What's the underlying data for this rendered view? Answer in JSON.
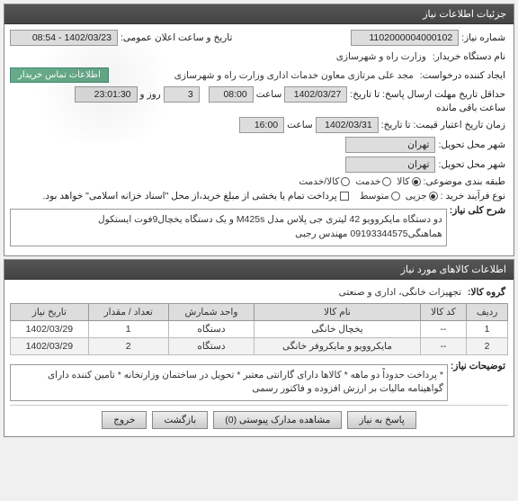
{
  "panel1": {
    "title": "جزئیات اطلاعات نیاز",
    "need_no_label": "شماره نیاز:",
    "need_no": "1102000004000102",
    "announce_label": "تاریخ و ساعت اعلان عمومی:",
    "announce_val": "1402/03/23 - 08:54",
    "buyer_label": "نام دستگاه خریدار:",
    "buyer_val": "وزارت راه و شهرسازی",
    "requester_label": "ایجاد کننده درخواست:",
    "requester_val": "مجد علی  مرتازی معاون خدمات اداری وزارت راه و شهرسازی",
    "contact_btn": "اطلاعات تماس خریدار",
    "deadline_label": "حداقل تاریخ\\nمهلت ارسال پاسخ: تا\\nتاریخ:",
    "deadline_date": "1402/03/27",
    "time_label": "ساعت",
    "deadline_time": "08:00",
    "days_label": "روز و",
    "days_left": "3",
    "hhmmss": "23:01:30",
    "remaining": "ساعت باقی مانده",
    "expire_label": "زمان تاریخ اعتبار\\nقیمت: تا تاریخ:",
    "expire_date": "1402/03/31",
    "expire_time": "16:00",
    "need_city_label": "شهر محل تحویل:",
    "need_city": "تهران",
    "deliver_city_label": "شهر محل تحویل:",
    "deliver_city": "تهران",
    "cat_label": "طبقه بندی موضوعی:",
    "radios": [
      "کالا",
      "خدمت",
      "کالا/خدمت"
    ],
    "buy_type_label": "نوع فرآیند خرید :",
    "buy_types": [
      "جزیی",
      "متوسط"
    ],
    "check_text": "پرداخت تمام یا بخشی از مبلغ خرید،از محل \"اسناد خزانه اسلامی\" خواهد بود.",
    "main_desc_label": "شرح کلی نیاز:",
    "main_desc": "دو دستگاه مایکروویو 42 لیتری جی پلاس مدل M425s و یک دستگاه یخچال9فوت ایستکول هماهنگی09193344575 مهندس رجبی"
  },
  "panel2": {
    "title": "اطلاعات کالاهای مورد نیاز",
    "group_label": "گروه کالا:",
    "group_val": "تجهیزات خانگی، اداری و صنعتی",
    "cols": [
      "ردیف",
      "کد کالا",
      "نام کالا",
      "واحد شمارش",
      "تعداد / مقدار",
      "تاریخ نیاز"
    ],
    "rows": [
      [
        "1",
        "--",
        "یخچال خانگی",
        "دستگاه",
        "1",
        "1402/03/29"
      ],
      [
        "2",
        "--",
        "مایکروویو و مایکروفر خانگی",
        "دستگاه",
        "2",
        "1402/03/29"
      ]
    ],
    "notes_label": "توضیحات نیاز:",
    "notes": "* پرداخت حدوداً دو ماهه * کالاها دارای گارانتی معتبر * تحویل در ساختمان وزارتخانه * تامین کننده دارای گواهینامه مالیات بر ارزش افزوده و فاکتور رسمی"
  },
  "footer": {
    "btn_answer": "پاسخ به نیاز",
    "btn_docs": "مشاهده مدارک پیوستی (0)",
    "btn_back": "بازگشت",
    "btn_exit": "خروج"
  }
}
